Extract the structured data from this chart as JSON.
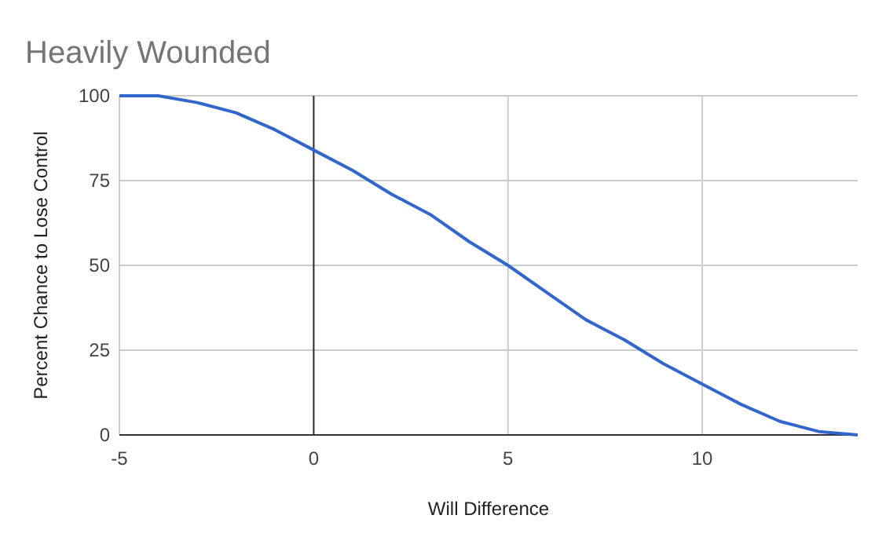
{
  "chart_data": {
    "type": "line",
    "title": "Heavily Wounded",
    "xlabel": "Will Difference",
    "ylabel": "Percent Chance to Lose Control",
    "x": [
      -5,
      -4,
      -3,
      -2,
      -1,
      0,
      1,
      2,
      3,
      4,
      5,
      6,
      7,
      8,
      9,
      10,
      11,
      12,
      13,
      14
    ],
    "series": [
      {
        "color": "#3366cc",
        "values": [
          100,
          100,
          98,
          95,
          90,
          84,
          78,
          71,
          65,
          57,
          50,
          42,
          34,
          28,
          21,
          15,
          9,
          4,
          1,
          0
        ]
      }
    ],
    "xlim": [
      -5,
      14
    ],
    "xticks": [
      -5,
      0,
      5,
      10
    ],
    "ylim": [
      0,
      100
    ],
    "yticks": [
      0,
      25,
      50,
      75,
      100
    ],
    "grid": true,
    "marker": "none",
    "line_style": "solid",
    "ref_lines": [
      {
        "axis": "x",
        "value": 0,
        "color": "#333333"
      }
    ]
  }
}
